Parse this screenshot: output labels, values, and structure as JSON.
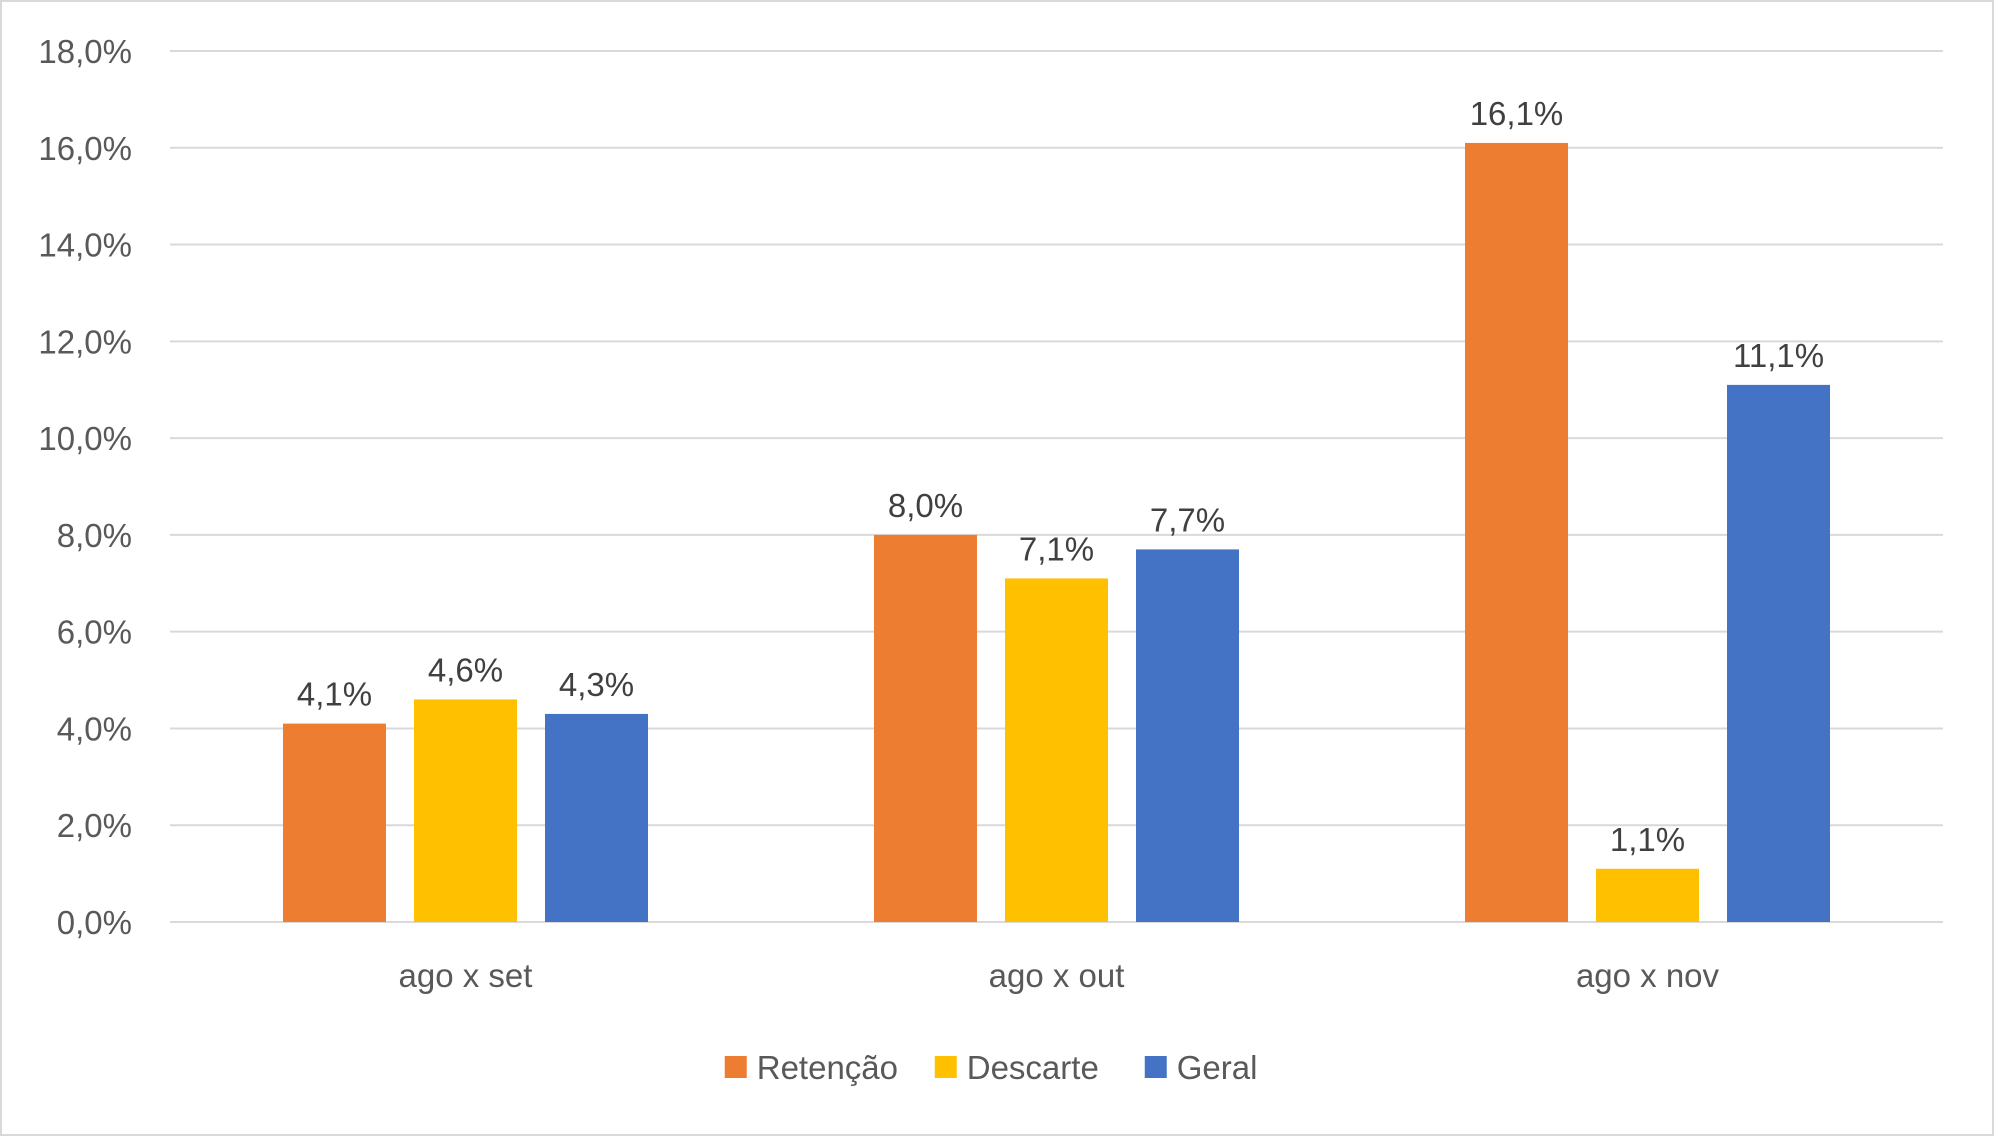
{
  "chart_data": {
    "type": "bar",
    "categories": [
      "ago x set",
      "ago x out",
      "ago x nov"
    ],
    "series": [
      {
        "name": "Retenção",
        "values": [
          4.1,
          8.0,
          16.1
        ],
        "labels": [
          "4,1%",
          "8,0%",
          "16,1%"
        ],
        "color": "#ED7D31"
      },
      {
        "name": "Descarte",
        "values": [
          4.6,
          7.1,
          1.1
        ],
        "labels": [
          "4,6%",
          "7,1%",
          "1,1%"
        ],
        "color": "#FFC000"
      },
      {
        "name": "Geral",
        "values": [
          4.3,
          7.7,
          11.1
        ],
        "labels": [
          "4,3%",
          "7,7%",
          "11,1%"
        ],
        "color": "#4472C4"
      }
    ],
    "ylim": [
      0,
      18
    ],
    "yticks": [
      0,
      2,
      4,
      6,
      8,
      10,
      12,
      14,
      16,
      18
    ],
    "ytick_labels": [
      "0,0%",
      "2,0%",
      "4,0%",
      "6,0%",
      "8,0%",
      "10,0%",
      "12,0%",
      "14,0%",
      "16,0%",
      "18,0%"
    ],
    "grid": true,
    "legend_position": "bottom",
    "title": "",
    "xlabel": "",
    "ylabel": "",
    "colors": {
      "grid": "#D9D9D9",
      "axis": "#D9D9D9",
      "tick_text": "#595959",
      "label_text": "#404040"
    }
  }
}
